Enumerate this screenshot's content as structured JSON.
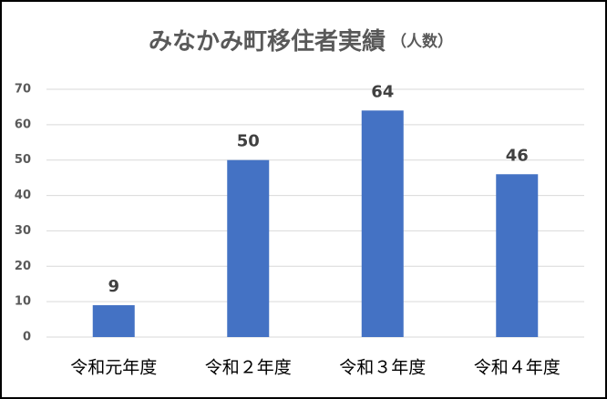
{
  "chart_data": {
    "type": "bar",
    "title": "みなかみ町移住者実績",
    "subtitle": "（人数）",
    "categories": [
      "令和元年度",
      "令和２年度",
      "令和３年度",
      "令和４年度"
    ],
    "values": [
      9,
      50,
      64,
      46
    ],
    "color": "#4472c4",
    "ylim": [
      0,
      70
    ],
    "yticks": [
      0,
      10,
      20,
      30,
      40,
      50,
      60,
      70
    ],
    "grid": true
  }
}
